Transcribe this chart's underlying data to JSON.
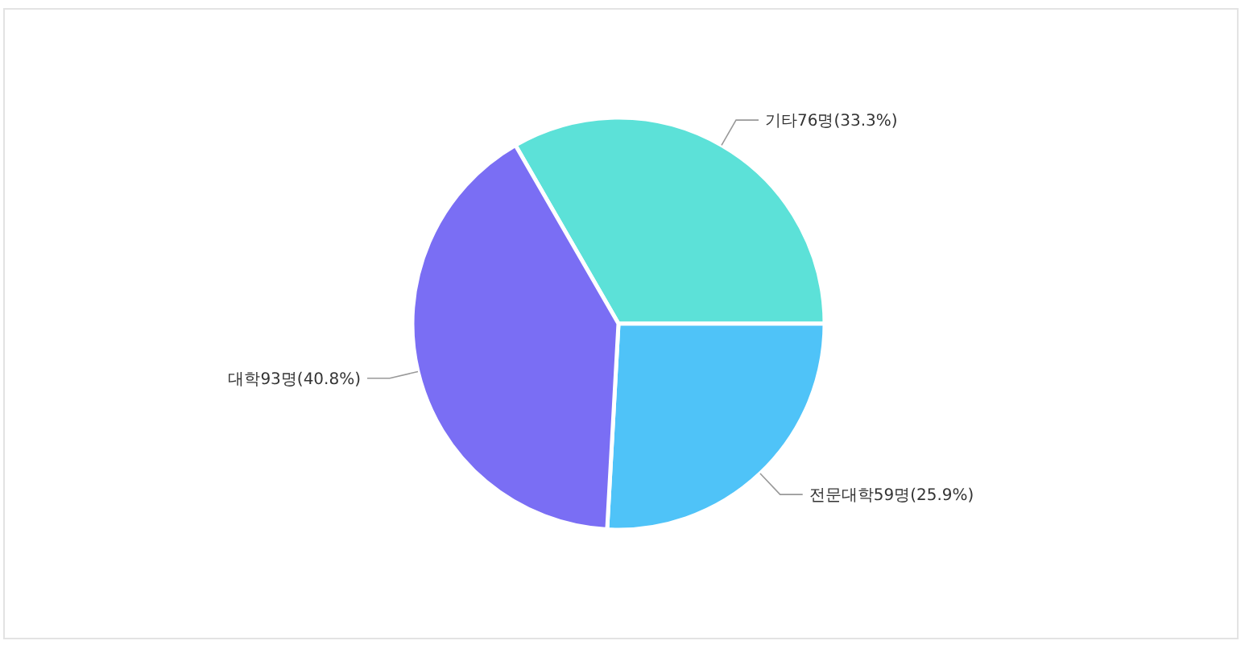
{
  "chart_data": {
    "type": "pie",
    "categories": [
      "기타",
      "전문대학",
      "대학"
    ],
    "values": [
      76,
      59,
      93
    ],
    "value_labels": [
      "76명(33.3%)",
      "59명(25.9%)",
      "93명(40.8%)"
    ],
    "colors": [
      "#5ce1d8",
      "#4fc3f8",
      "#7a6ef4"
    ]
  }
}
